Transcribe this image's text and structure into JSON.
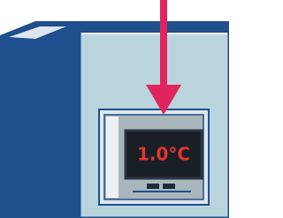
{
  "display": {
    "reading": "1.0°C"
  }
}
